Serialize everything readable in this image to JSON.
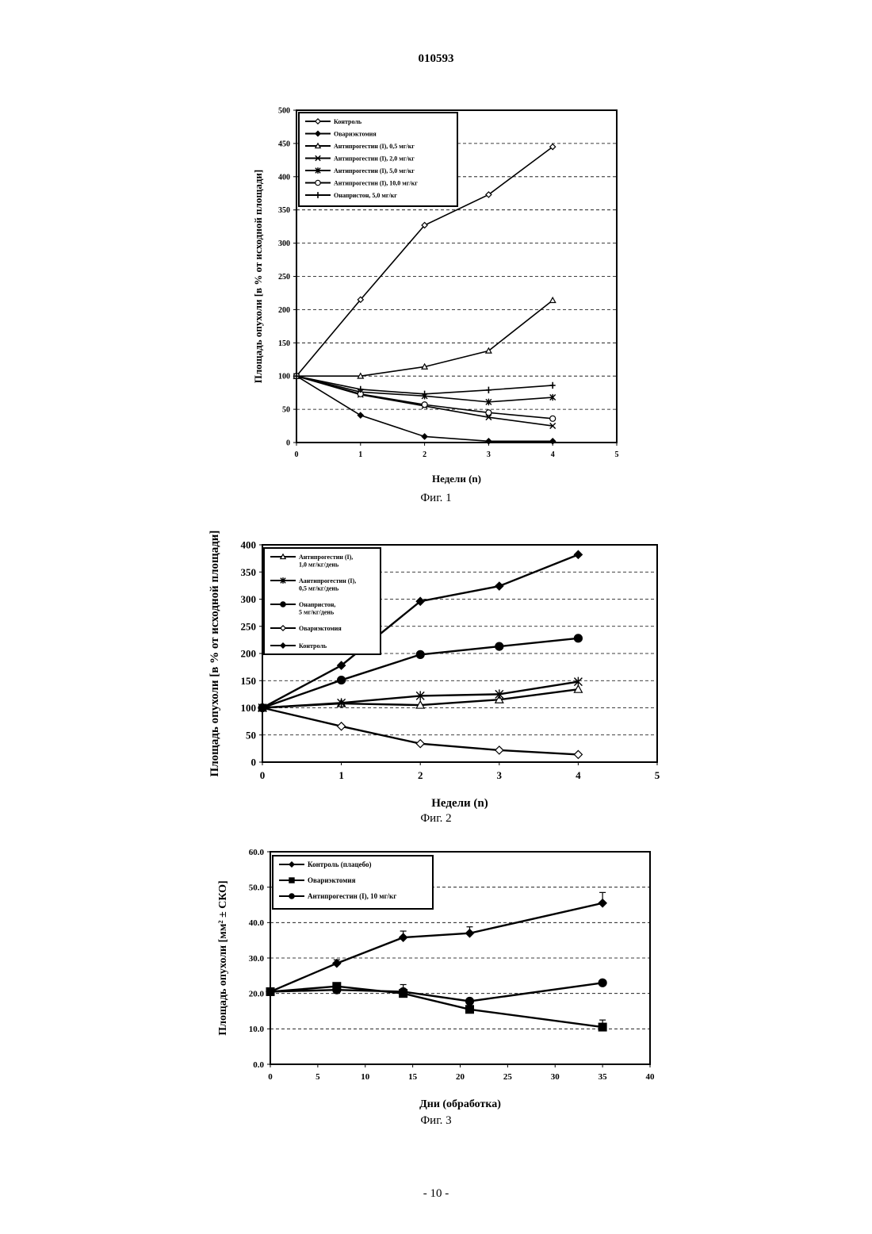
{
  "header": {
    "doc_number": "010593"
  },
  "footer": {
    "page_label": "- 10 -"
  },
  "figures": [
    {
      "caption": "Фиг. 1"
    },
    {
      "caption": "Фиг. 2"
    },
    {
      "caption": "Фиг. 3"
    }
  ],
  "chart_data": [
    {
      "type": "line",
      "title": "",
      "xlabel": "Недели (n)",
      "ylabel": "Площадь опухоли [в % от исходной площади]",
      "xlim": [
        0,
        5
      ],
      "ylim": [
        0,
        500
      ],
      "xticks": [
        0,
        1,
        2,
        3,
        4,
        5
      ],
      "yticks": [
        0,
        50,
        100,
        150,
        200,
        250,
        300,
        350,
        400,
        450,
        500
      ],
      "grid": "horizontal dashed",
      "legend_position": "top-left",
      "x": [
        0,
        1,
        2,
        3,
        4
      ],
      "series": [
        {
          "name": "Контроль",
          "marker": "diamond-open",
          "values": [
            100,
            215,
            327,
            373,
            445
          ]
        },
        {
          "name": "Овариэктомия",
          "marker": "diamond",
          "values": [
            100,
            41,
            9,
            2,
            2
          ]
        },
        {
          "name": "Антипрогестин (I), 0,5 мг/кг",
          "marker": "triangle-open",
          "values": [
            100,
            100,
            114,
            138,
            214
          ]
        },
        {
          "name": "Антипрогестин (I), 2,0 мг/кг",
          "marker": "x",
          "values": [
            100,
            72,
            55,
            38,
            25
          ]
        },
        {
          "name": "Антипрогестин (I), 5,0 мг/кг",
          "marker": "star",
          "values": [
            100,
            76,
            70,
            61,
            68
          ]
        },
        {
          "name": "Антипрогестин (I), 10,0 мг/кг",
          "marker": "circle-open",
          "values": [
            100,
            73,
            57,
            45,
            36
          ]
        },
        {
          "name": "Онапристон, 5,0 мг/кг",
          "marker": "plus",
          "values": [
            100,
            80,
            73,
            79,
            86
          ]
        }
      ]
    },
    {
      "type": "line",
      "title": "",
      "xlabel": "Недели (n)",
      "ylabel": "Площадь опухоли [в % от исходной площади]",
      "xlim": [
        0,
        5
      ],
      "ylim": [
        0,
        400
      ],
      "xticks": [
        0,
        1,
        2,
        3,
        4,
        5
      ],
      "yticks": [
        0,
        50,
        100,
        150,
        200,
        250,
        300,
        350,
        400
      ],
      "grid": "horizontal dashed",
      "legend_position": "top-left",
      "x": [
        0,
        1,
        2,
        3,
        4
      ],
      "series": [
        {
          "name": "Антипрогестин (I), 1,0 мг/кг/день",
          "marker": "triangle-open",
          "values": [
            100,
            108,
            105,
            115,
            134
          ]
        },
        {
          "name": "Аантипрогестин (I), 0,5 мг/кг/день",
          "marker": "star",
          "values": [
            100,
            109,
            122,
            125,
            148
          ]
        },
        {
          "name": "Онапристон, 5 мг/кг/день",
          "marker": "circle",
          "values": [
            100,
            151,
            198,
            213,
            228
          ]
        },
        {
          "name": "Овариэктомия",
          "marker": "diamond-open",
          "values": [
            100,
            66,
            34,
            22,
            14
          ]
        },
        {
          "name": "Контроль",
          "marker": "diamond",
          "values": [
            100,
            178,
            296,
            324,
            382
          ]
        }
      ]
    },
    {
      "type": "line",
      "title": "",
      "xlabel": "Дни (обработка)",
      "ylabel": "Площадь опухоли [мм² ± СКО]",
      "xlim": [
        0,
        40
      ],
      "ylim": [
        0,
        60
      ],
      "xticks": [
        0,
        5,
        10,
        15,
        20,
        25,
        30,
        35,
        40
      ],
      "yticks": [
        "0.0",
        "10.0",
        "20.0",
        "30.0",
        "40.0",
        "50.0",
        "60.0"
      ],
      "grid": "horizontal dashed",
      "legend_position": "top-left",
      "x": [
        0,
        7,
        14,
        21,
        35
      ],
      "series": [
        {
          "name": "Контроль (плацебо)",
          "marker": "diamond",
          "values": [
            20.5,
            28.5,
            35.8,
            37.0,
            45.5
          ],
          "errors": [
            0.5,
            1.0,
            1.8,
            1.8,
            3.0
          ]
        },
        {
          "name": "Овариэктомия",
          "marker": "square",
          "values": [
            20.5,
            22.0,
            20.0,
            15.5,
            10.5
          ],
          "errors": [
            0.5,
            0.5,
            2.5,
            0.5,
            2.0
          ]
        },
        {
          "name": "Антипрогестин (I), 10 мг/кг",
          "marker": "circle",
          "values": [
            20.5,
            21.0,
            20.5,
            17.8,
            23.0
          ],
          "errors": [
            0.5,
            0.5,
            0.5,
            0.5,
            0.5
          ]
        }
      ]
    }
  ]
}
